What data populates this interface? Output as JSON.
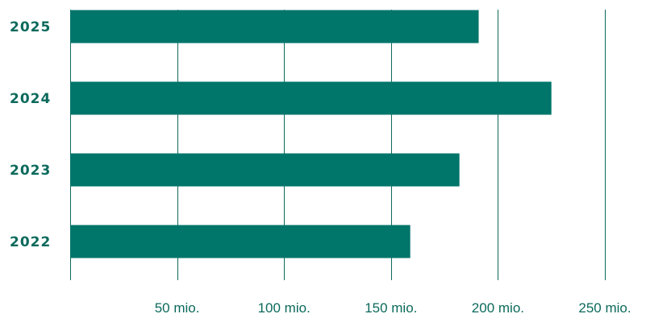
{
  "chart_data": {
    "type": "bar",
    "orientation": "horizontal",
    "categories": [
      "2025",
      "2024",
      "2023",
      "2022"
    ],
    "values": [
      191,
      225,
      182,
      159
    ],
    "xlim": [
      0,
      250
    ],
    "xticks": [
      0,
      50,
      100,
      150,
      200,
      250
    ],
    "xtick_labels": [
      "50 mio.",
      "100 mio.",
      "150 mio.",
      "200 mio.",
      "250 mio."
    ],
    "grid": "vertical",
    "title": "",
    "xlabel": "",
    "ylabel": "",
    "colors": {
      "bar": "#00756a",
      "grid": "#0c6a5c",
      "text": "#0c6a5c"
    }
  }
}
